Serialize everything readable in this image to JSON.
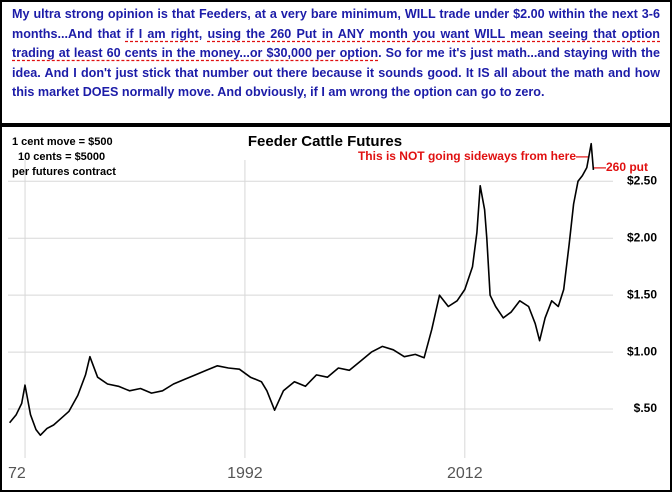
{
  "note": {
    "segments": [
      {
        "text": "My ultra strong opinion is that Feeders, at a very bare minimum, WILL trade under $2.00 within the next 3-6 months...And that ",
        "underline": false
      },
      {
        "text": "if I am right",
        "underline": true
      },
      {
        "text": ", ",
        "underline": false
      },
      {
        "text": "using the 260 Put in ANY month you want WILL mean seeing that option trading at least 60 cents in the money...or $30,000 per option",
        "underline": true
      },
      {
        "text": ". So for me it's just math...and staying with the idea. And I don't just stick that number out there because it sounds good. It IS all about the math and how this market DOES normally move. And obviously, if I am wrong the option can go to zero.",
        "underline": false
      }
    ]
  },
  "chart_data": {
    "type": "line",
    "title": "Feeder Cattle Futures",
    "annotations": [
      "1 cent move = $500",
      "10 cents = $5000",
      "per futures contract",
      "This is NOT going sideways from here—",
      "—260 put"
    ],
    "x": [
      1970.6,
      1971.2,
      1971.7,
      1972.0,
      1972.5,
      1973.0,
      1973.4,
      1974.0,
      1974.6,
      1975.3,
      1976.0,
      1976.8,
      1977.5,
      1977.9,
      1978.6,
      1979.5,
      1980.5,
      1981.5,
      1982.5,
      1983.5,
      1984.5,
      1985.5,
      1986.5,
      1987.5,
      1988.5,
      1989.5,
      1990.5,
      1991.5,
      1992.5,
      1993.5,
      1994.0,
      1994.7,
      1995.5,
      1996.5,
      1997.5,
      1998.5,
      1999.5,
      2000.5,
      2001.5,
      2002.5,
      2003.5,
      2004.5,
      2005.5,
      2006.5,
      2007.5,
      2008.3,
      2009.0,
      2009.7,
      2010.5,
      2011.3,
      2012.0,
      2012.7,
      2013.1,
      2013.4,
      2013.8,
      2014.0,
      2014.3,
      2014.8,
      2015.5,
      2016.2,
      2017.0,
      2017.8,
      2018.4,
      2018.8,
      2019.3,
      2019.9,
      2020.5,
      2021.0,
      2021.5,
      2021.9,
      2022.3,
      2022.7,
      2023.1,
      2023.5,
      2023.7
    ],
    "values": [
      0.38,
      0.45,
      0.55,
      0.71,
      0.45,
      0.32,
      0.27,
      0.33,
      0.36,
      0.42,
      0.48,
      0.62,
      0.8,
      0.96,
      0.78,
      0.72,
      0.7,
      0.66,
      0.68,
      0.64,
      0.66,
      0.72,
      0.76,
      0.8,
      0.84,
      0.88,
      0.86,
      0.85,
      0.78,
      0.74,
      0.66,
      0.49,
      0.66,
      0.74,
      0.7,
      0.8,
      0.78,
      0.86,
      0.84,
      0.92,
      1.0,
      1.05,
      1.02,
      0.96,
      0.98,
      0.95,
      1.2,
      1.5,
      1.4,
      1.45,
      1.55,
      1.75,
      2.05,
      2.46,
      2.25,
      2.0,
      1.5,
      1.4,
      1.3,
      1.35,
      1.45,
      1.4,
      1.25,
      1.1,
      1.3,
      1.45,
      1.4,
      1.55,
      1.95,
      2.3,
      2.5,
      2.55,
      2.62,
      2.83,
      2.6
    ],
    "color": "#000000",
    "xlim": [
      1970.45,
      2029.3
    ],
    "ylim": [
      0,
      2.95
    ],
    "xticks": [
      {
        "value": 1972,
        "label": "72"
      },
      1992,
      2012
    ],
    "yticks": [
      {
        "value": 0.5,
        "label": "$.50"
      },
      {
        "value": 1,
        "label": "$1.00"
      },
      {
        "value": 1.5,
        "label": "$1.50"
      },
      {
        "value": 2,
        "label": "$2.00"
      },
      {
        "value": 2.5,
        "label": "$2.50"
      }
    ],
    "grid": true
  }
}
